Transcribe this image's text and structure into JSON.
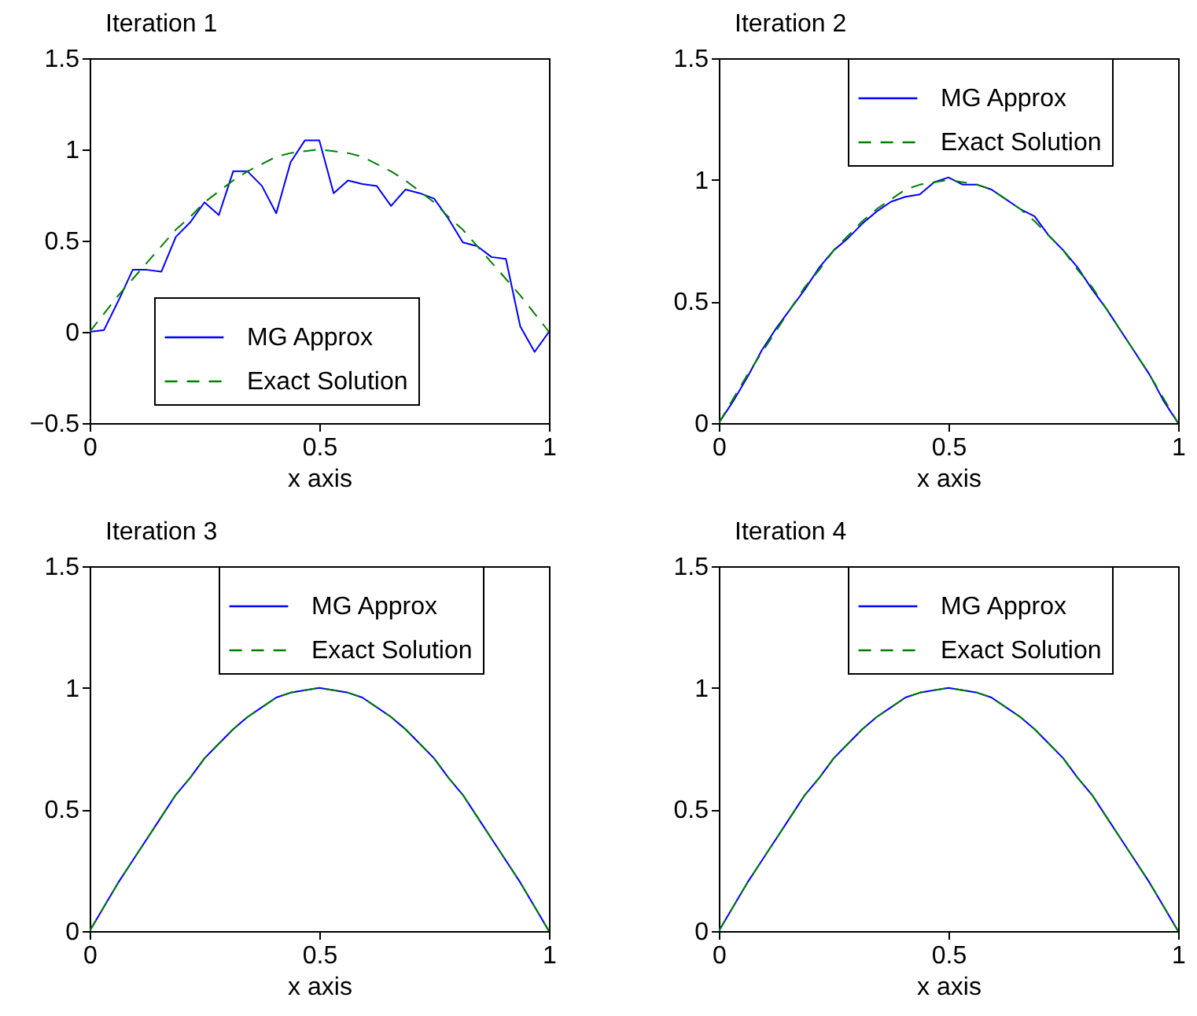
{
  "chart_data": [
    {
      "type": "line",
      "title": "Iteration 1",
      "xlabel": "x axis",
      "x": [
        0,
        0.03125,
        0.0625,
        0.09375,
        0.125,
        0.15625,
        0.1875,
        0.21875,
        0.25,
        0.28125,
        0.3125,
        0.34375,
        0.375,
        0.40625,
        0.4375,
        0.46875,
        0.5,
        0.53125,
        0.5625,
        0.59375,
        0.625,
        0.65625,
        0.6875,
        0.71875,
        0.75,
        0.78125,
        0.8125,
        0.84375,
        0.875,
        0.90625,
        0.9375,
        0.96875,
        1
      ],
      "xlim": [
        0,
        1
      ],
      "xticks": [
        0,
        0.5,
        1
      ],
      "ylim": [
        -0.5,
        1.5
      ],
      "yticks": [
        -0.5,
        0,
        0.5,
        1,
        1.5
      ],
      "legend": "bottom",
      "grid": false,
      "series": [
        {
          "name": "MG Approx",
          "color": "#0000ff",
          "line_style": "solid",
          "values": [
            0,
            0.01,
            0.17,
            0.34,
            0.34,
            0.33,
            0.52,
            0.6,
            0.71,
            0.64,
            0.88,
            0.88,
            0.8,
            0.65,
            0.93,
            1.05,
            1.05,
            0.76,
            0.83,
            0.81,
            0.8,
            0.69,
            0.78,
            0.76,
            0.73,
            0.62,
            0.49,
            0.47,
            0.41,
            0.4,
            0.03,
            -0.11,
            0
          ]
        },
        {
          "name": "Exact Solution",
          "color": "#008000",
          "line_style": "dashed",
          "values": [
            0,
            0.1,
            0.2,
            0.29,
            0.38,
            0.47,
            0.56,
            0.63,
            0.71,
            0.77,
            0.83,
            0.88,
            0.92,
            0.96,
            0.98,
            0.99,
            1,
            0.99,
            0.98,
            0.96,
            0.92,
            0.88,
            0.83,
            0.77,
            0.71,
            0.63,
            0.56,
            0.47,
            0.38,
            0.29,
            0.2,
            0.1,
            0
          ]
        }
      ]
    },
    {
      "type": "line",
      "title": "Iteration 2",
      "xlabel": "x axis",
      "x": [
        0,
        0.03125,
        0.0625,
        0.09375,
        0.125,
        0.15625,
        0.1875,
        0.21875,
        0.25,
        0.28125,
        0.3125,
        0.34375,
        0.375,
        0.40625,
        0.4375,
        0.46875,
        0.5,
        0.53125,
        0.5625,
        0.59375,
        0.625,
        0.65625,
        0.6875,
        0.71875,
        0.75,
        0.78125,
        0.8125,
        0.84375,
        0.875,
        0.90625,
        0.9375,
        0.96875,
        1
      ],
      "xlim": [
        0,
        1
      ],
      "xticks": [
        0,
        0.5,
        1
      ],
      "ylim": [
        0,
        1.5
      ],
      "yticks": [
        0,
        0.5,
        1,
        1.5
      ],
      "legend": "top right",
      "grid": false,
      "series": [
        {
          "name": "MG Approx",
          "color": "#0000ff",
          "line_style": "solid",
          "values": [
            0,
            0.09,
            0.19,
            0.3,
            0.39,
            0.47,
            0.55,
            0.64,
            0.71,
            0.76,
            0.82,
            0.87,
            0.91,
            0.93,
            0.94,
            0.99,
            1.01,
            0.98,
            0.98,
            0.96,
            0.92,
            0.88,
            0.85,
            0.77,
            0.71,
            0.64,
            0.55,
            0.47,
            0.38,
            0.29,
            0.2,
            0.09,
            0
          ]
        },
        {
          "name": "Exact Solution",
          "color": "#008000",
          "line_style": "dashed",
          "values": [
            0,
            0.1,
            0.2,
            0.29,
            0.38,
            0.47,
            0.56,
            0.63,
            0.71,
            0.77,
            0.83,
            0.88,
            0.92,
            0.96,
            0.98,
            0.99,
            1,
            0.99,
            0.98,
            0.96,
            0.92,
            0.88,
            0.83,
            0.77,
            0.71,
            0.63,
            0.56,
            0.47,
            0.38,
            0.29,
            0.2,
            0.1,
            0
          ]
        }
      ]
    },
    {
      "type": "line",
      "title": "Iteration 3",
      "xlabel": "x axis",
      "x": [
        0,
        0.03125,
        0.0625,
        0.09375,
        0.125,
        0.15625,
        0.1875,
        0.21875,
        0.25,
        0.28125,
        0.3125,
        0.34375,
        0.375,
        0.40625,
        0.4375,
        0.46875,
        0.5,
        0.53125,
        0.5625,
        0.59375,
        0.625,
        0.65625,
        0.6875,
        0.71875,
        0.75,
        0.78125,
        0.8125,
        0.84375,
        0.875,
        0.90625,
        0.9375,
        0.96875,
        1
      ],
      "xlim": [
        0,
        1
      ],
      "xticks": [
        0,
        0.5,
        1
      ],
      "ylim": [
        0,
        1.5
      ],
      "yticks": [
        0,
        0.5,
        1,
        1.5
      ],
      "legend": "top right",
      "grid": false,
      "series": [
        {
          "name": "MG Approx",
          "color": "#0000ff",
          "line_style": "solid",
          "values": [
            0,
            0.1,
            0.2,
            0.29,
            0.38,
            0.47,
            0.56,
            0.63,
            0.71,
            0.77,
            0.83,
            0.88,
            0.92,
            0.96,
            0.98,
            0.99,
            1,
            0.99,
            0.98,
            0.96,
            0.92,
            0.88,
            0.83,
            0.77,
            0.71,
            0.63,
            0.56,
            0.47,
            0.38,
            0.29,
            0.2,
            0.1,
            0
          ]
        },
        {
          "name": "Exact Solution",
          "color": "#008000",
          "line_style": "dashed",
          "values": [
            0,
            0.1,
            0.2,
            0.29,
            0.38,
            0.47,
            0.56,
            0.63,
            0.71,
            0.77,
            0.83,
            0.88,
            0.92,
            0.96,
            0.98,
            0.99,
            1,
            0.99,
            0.98,
            0.96,
            0.92,
            0.88,
            0.83,
            0.77,
            0.71,
            0.63,
            0.56,
            0.47,
            0.38,
            0.29,
            0.2,
            0.1,
            0
          ]
        }
      ]
    },
    {
      "type": "line",
      "title": "Iteration 4",
      "xlabel": "x axis",
      "x": [
        0,
        0.03125,
        0.0625,
        0.09375,
        0.125,
        0.15625,
        0.1875,
        0.21875,
        0.25,
        0.28125,
        0.3125,
        0.34375,
        0.375,
        0.40625,
        0.4375,
        0.46875,
        0.5,
        0.53125,
        0.5625,
        0.59375,
        0.625,
        0.65625,
        0.6875,
        0.71875,
        0.75,
        0.78125,
        0.8125,
        0.84375,
        0.875,
        0.90625,
        0.9375,
        0.96875,
        1
      ],
      "xlim": [
        0,
        1
      ],
      "xticks": [
        0,
        0.5,
        1
      ],
      "ylim": [
        0,
        1.5
      ],
      "yticks": [
        0,
        0.5,
        1,
        1.5
      ],
      "legend": "top right",
      "grid": false,
      "series": [
        {
          "name": "MG Approx",
          "color": "#0000ff",
          "line_style": "solid",
          "values": [
            0,
            0.1,
            0.2,
            0.29,
            0.38,
            0.47,
            0.56,
            0.63,
            0.71,
            0.77,
            0.83,
            0.88,
            0.92,
            0.96,
            0.98,
            0.99,
            1,
            0.99,
            0.98,
            0.96,
            0.92,
            0.88,
            0.83,
            0.77,
            0.71,
            0.63,
            0.56,
            0.47,
            0.38,
            0.29,
            0.2,
            0.1,
            0
          ]
        },
        {
          "name": "Exact Solution",
          "color": "#008000",
          "line_style": "dashed",
          "values": [
            0,
            0.1,
            0.2,
            0.29,
            0.38,
            0.47,
            0.56,
            0.63,
            0.71,
            0.77,
            0.83,
            0.88,
            0.92,
            0.96,
            0.98,
            0.99,
            1,
            0.99,
            0.98,
            0.96,
            0.92,
            0.88,
            0.83,
            0.77,
            0.71,
            0.63,
            0.56,
            0.47,
            0.38,
            0.29,
            0.2,
            0.1,
            0
          ]
        }
      ]
    }
  ]
}
